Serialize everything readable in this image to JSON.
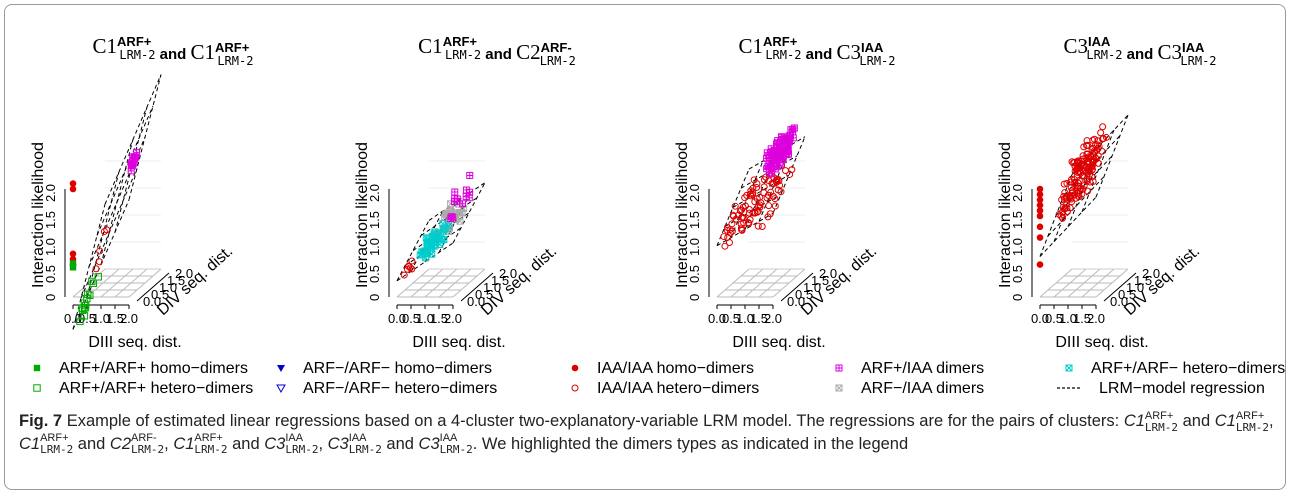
{
  "figure": {
    "panels": [
      {
        "title_parts": [
          "C1",
          "ARF+",
          "LRM-2",
          " and ",
          "C1",
          "ARF+",
          "LRM-2"
        ]
      },
      {
        "title_parts": [
          "C1",
          "ARF+",
          "LRM-2",
          " and ",
          "C2",
          "ARF-",
          "LRM-2"
        ]
      },
      {
        "title_parts": [
          "C1",
          "ARF+",
          "LRM-2",
          " and ",
          "C3",
          "IAA",
          "LRM-2"
        ]
      },
      {
        "title_parts": [
          "C3",
          "IAA",
          "LRM-2",
          " and ",
          "C3",
          "IAA",
          "LRM-2"
        ]
      }
    ],
    "axes": {
      "z_label": "Interaction likelihood",
      "y_label": "DIV seq. dist.",
      "x_label": "DIII seq. dist.",
      "x_ticks": [
        "0.0",
        "0.5",
        "1.0",
        "1.5",
        "2.0"
      ],
      "y_ticks": [
        "0.0",
        "0.5",
        "1.0",
        "1.5",
        "2.0"
      ],
      "z_ticks": [
        "0.5",
        "1.0",
        "1.5",
        "2.0"
      ]
    },
    "legend": [
      {
        "label": "ARF+/ARF+ homo−dimers",
        "marker": "filled-square",
        "color": "#00aa00"
      },
      {
        "label": "ARF−/ARF− homo−dimers",
        "marker": "filled-triangle-down",
        "color": "#0000cc"
      },
      {
        "label": "IAA/IAA homo−dimers",
        "marker": "filled-circle",
        "color": "#dd0000"
      },
      {
        "label": "ARF+/IAA dimers",
        "marker": "boxed-plus",
        "color": "#dd00dd"
      },
      {
        "label": "ARF+/ARF− hetero−dimers",
        "marker": "boxed-x",
        "color": "#00cccc"
      },
      {
        "label": "ARF+/ARF+ hetero−dimers",
        "marker": "open-square",
        "color": "#00aa00"
      },
      {
        "label": "ARF−/ARF− hetero−dimers",
        "marker": "open-triangle-down",
        "color": "#0000cc"
      },
      {
        "label": "IAA/IAA hetero−dimers",
        "marker": "open-circle",
        "color": "#dd0000"
      },
      {
        "label": "ARF−/IAA dimers",
        "marker": "boxed-x",
        "color": "#aaaaaa"
      },
      {
        "label": "LRM−model regression",
        "marker": "dashed-line",
        "color": "#000000"
      }
    ]
  },
  "caption": {
    "label": "Fig. 7",
    "text": "Example of estimated linear regressions based on a 4-cluster two-explanatory-variable LRM model. The regressions are for the pairs of clusters:",
    "pairs_text": [
      "C1",
      "ARF+",
      "LRM-2",
      " and ",
      "C1",
      "ARF+",
      "LRM-2",
      ", ",
      "C1",
      "ARF+",
      "LRM-2",
      " and ",
      "C2",
      "ARF-",
      "LRM-2",
      ", ",
      "C1",
      "ARF+",
      "LRM-2",
      " and ",
      "C3",
      "IAA",
      "LRM-2",
      ", ",
      "C3",
      "IAA",
      "LRM-2",
      " and ",
      "C3",
      "IAA",
      "LRM-2"
    ],
    "tail": ". We highlighted the dimers types as indicated in the legend"
  },
  "colors": {
    "ink": "#000000",
    "grid": "#bbbbbb",
    "green": "#00aa00",
    "blue": "#0000cc",
    "red": "#dd0000",
    "magenta": "#dd00dd",
    "cyan": "#00cccc",
    "gray": "#aaaaaa",
    "caption_label": "#000000"
  }
}
